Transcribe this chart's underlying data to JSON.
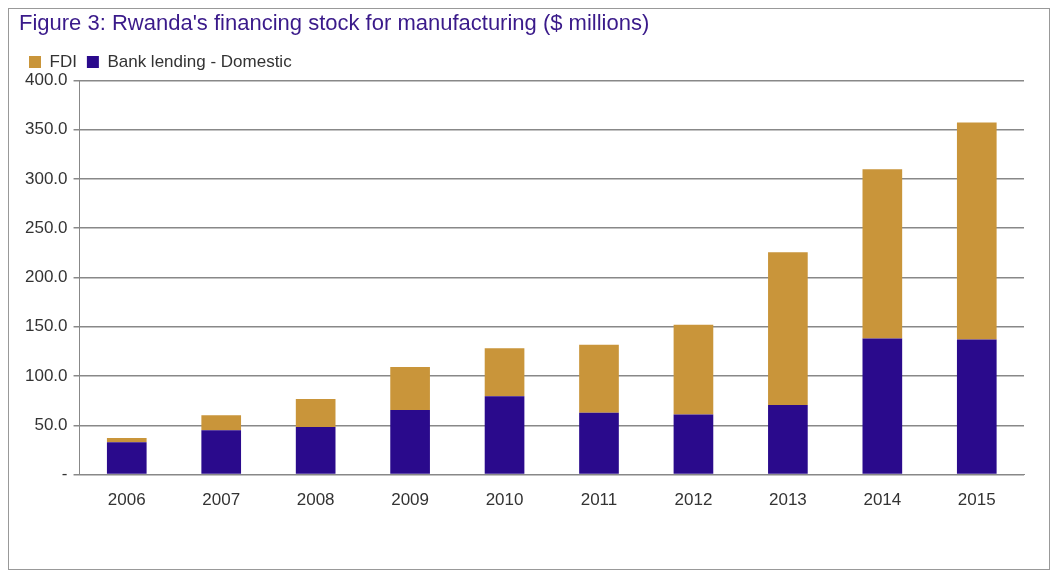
{
  "chart_data": {
    "type": "bar",
    "title": "Figure 3: Rwanda's financing stock for manufacturing ($ millions)",
    "categories": [
      "2006",
      "2007",
      "2008",
      "2009",
      "2010",
      "2011",
      "2012",
      "2013",
      "2014",
      "2015"
    ],
    "series": [
      {
        "name": "Bank lending - Domestic",
        "color": "#2a0a8c",
        "values": [
          32.8,
          45.1,
          48.4,
          65.6,
          79.4,
          62.7,
          61.1,
          70.6,
          138.1,
          137.1
        ]
      },
      {
        "name": "FDI",
        "color": "#c9953a",
        "values": [
          4.3,
          15.2,
          28.3,
          43.5,
          48.8,
          69.0,
          90.9,
          155.1,
          171.8,
          220.2
        ]
      }
    ],
    "stacked": true,
    "ylim": [
      0,
      400
    ],
    "yticks": [
      {
        "value": 0,
        "label": "-"
      },
      {
        "value": 50,
        "label": "50.0"
      },
      {
        "value": 100,
        "label": "100.0"
      },
      {
        "value": 150,
        "label": "150.0"
      },
      {
        "value": 200,
        "label": "200.0"
      },
      {
        "value": 250,
        "label": "250.0"
      },
      {
        "value": 300,
        "label": "300.0"
      },
      {
        "value": 350,
        "label": "350.0"
      },
      {
        "value": 400,
        "label": "400.0"
      }
    ],
    "grid": "y",
    "legend": "top left"
  }
}
